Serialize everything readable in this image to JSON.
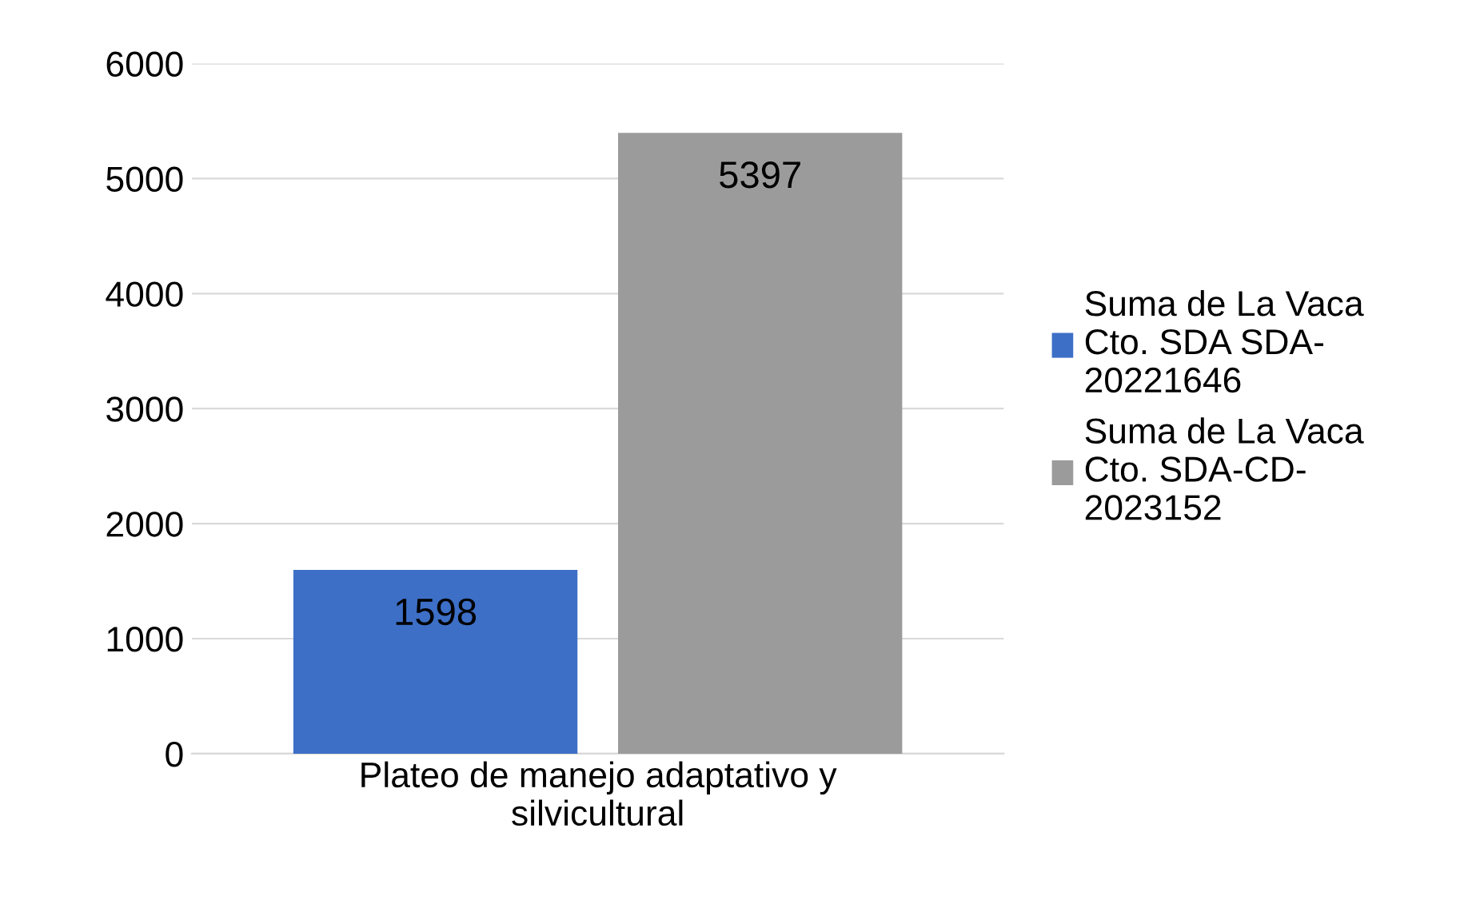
{
  "chart_data": {
    "type": "bar",
    "categories": [
      "Plateo de manejo adaptativo y silvicultural"
    ],
    "series": [
      {
        "name": "Suma de La Vaca Cto. SDA SDA-20221646",
        "color": "#3d6fc6",
        "values": [
          1598
        ]
      },
      {
        "name": "Suma de La Vaca Cto. SDA-CD-2023152",
        "color": "#9b9b9b",
        "values": [
          5397
        ]
      }
    ],
    "ylim": [
      0,
      6000
    ],
    "yticks": [
      0,
      1000,
      2000,
      3000,
      4000,
      5000,
      6000
    ],
    "grid": "y",
    "legend": "right",
    "data_labels": true
  }
}
